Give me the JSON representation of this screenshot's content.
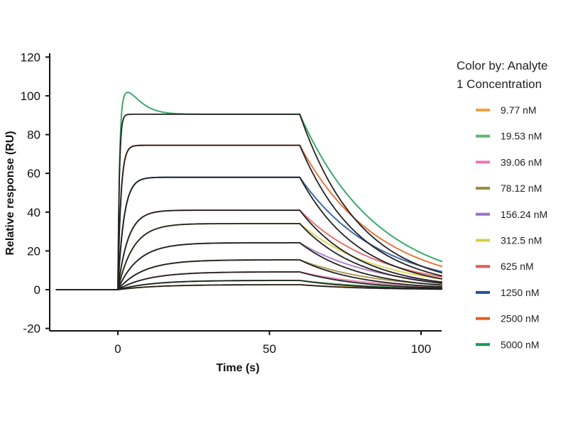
{
  "chart_data": {
    "type": "line",
    "xlabel": "Time (s)",
    "ylabel": "Relative response (RU)",
    "xlim": [
      -22.5,
      107
    ],
    "ylim": [
      -20,
      120
    ],
    "xticks": [
      0,
      50,
      100
    ],
    "yticks": [
      -20,
      0,
      20,
      40,
      60,
      80,
      100,
      120
    ],
    "injection_start_s": 0,
    "injection_end_s": 60,
    "grid": false,
    "legend": {
      "title_line1": "Color by: Analyte",
      "title_line2": "1 Concentration",
      "placement": "right"
    },
    "fit_color": "#222222",
    "series": [
      {
        "name": "9.77 nM",
        "color": "#f0a040",
        "plateau_RU": 2.6,
        "kobs": 0.08,
        "kd": 0.05
      },
      {
        "name": "19.53 nM",
        "color": "#5cb870",
        "plateau_RU": 4.8,
        "kobs": 0.09,
        "kd": 0.05
      },
      {
        "name": "39.06 nM",
        "color": "#e87ab0",
        "plateau_RU": 9.2,
        "kobs": 0.1,
        "kd": 0.05
      },
      {
        "name": "78.12 nM",
        "color": "#9a8a3a",
        "plateau_RU": 15.4,
        "kobs": 0.12,
        "kd": 0.05
      },
      {
        "name": "156.24 nM",
        "color": "#a070c0",
        "plateau_RU": 24.2,
        "kobs": 0.15,
        "kd": 0.05
      },
      {
        "name": "312.5 nM",
        "color": "#d8d040",
        "plateau_RU": 34.1,
        "kobs": 0.2,
        "kd": 0.05
      },
      {
        "name": "625 nM",
        "color": "#e05a5a",
        "plateau_RU": 41.0,
        "kobs": 0.3,
        "kd": 0.05
      },
      {
        "name": "1250 nM",
        "color": "#2050a0",
        "plateau_RU": 58.0,
        "kobs": 0.5,
        "kd": 0.05
      },
      {
        "name": "2500 nM",
        "color": "#e06020",
        "plateau_RU": 74.5,
        "kobs": 1.0,
        "kd": 0.05
      },
      {
        "name": "5000 nM",
        "color": "#1a9a50",
        "plateau_RU": 90.5,
        "kobs": 2.0,
        "kd": 0.05,
        "peak_RU": 100,
        "peak_time_s": 3
      }
    ]
  }
}
